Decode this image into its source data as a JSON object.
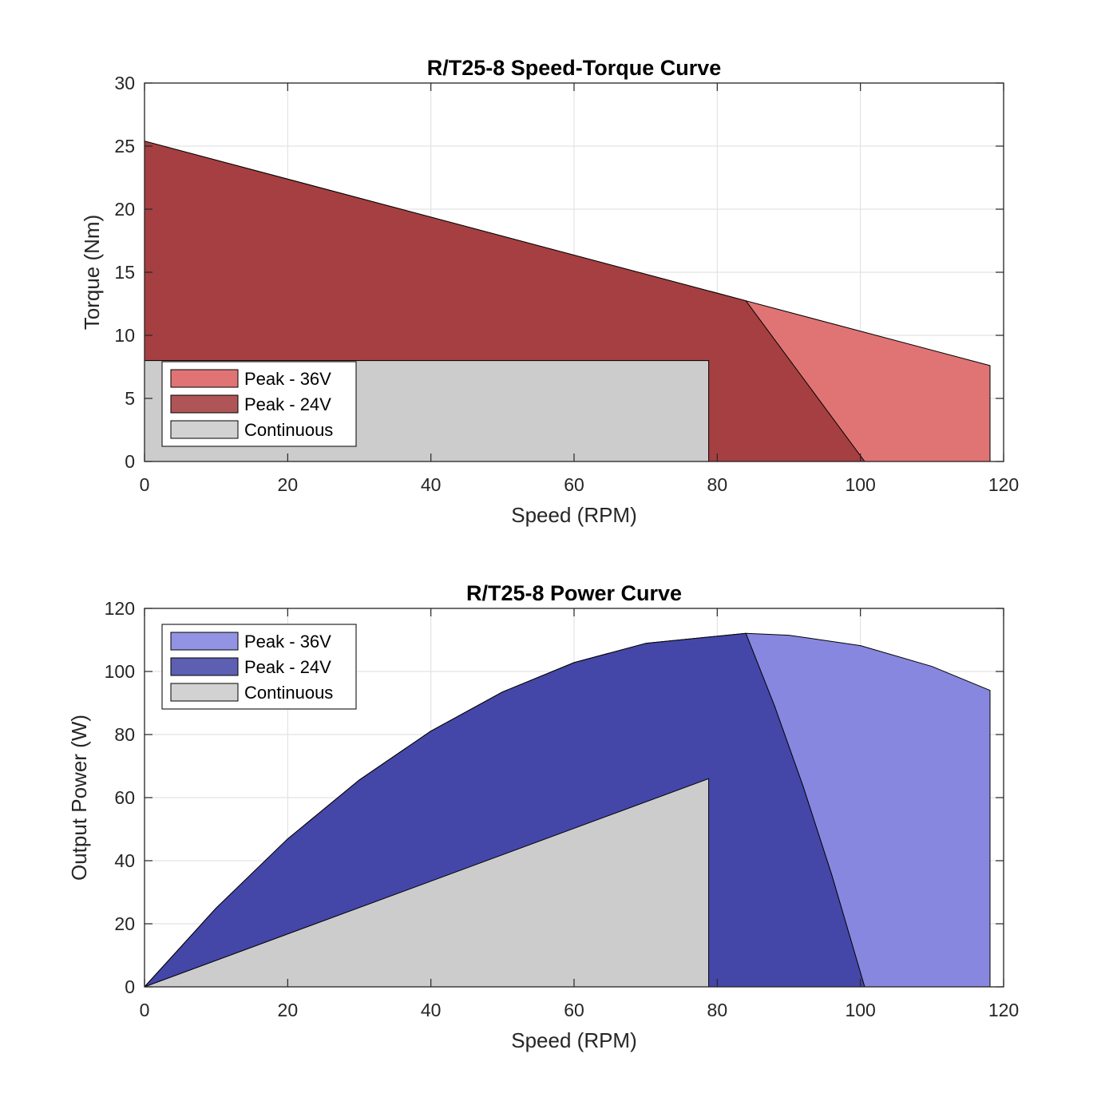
{
  "chart_data": [
    {
      "type": "area",
      "title": "R/T25-8 Speed-Torque Curve",
      "xlabel": "Speed (RPM)",
      "ylabel": "Torque (Nm)",
      "xlim": [
        0,
        120
      ],
      "ylim": [
        0,
        30
      ],
      "xticks": [
        0,
        20,
        40,
        60,
        80,
        100,
        120
      ],
      "yticks": [
        0,
        5,
        10,
        15,
        20,
        25,
        30
      ],
      "grid": true,
      "legend_position": "bottom-left",
      "series": [
        {
          "name": "Peak - 36V",
          "color": "#e07474",
          "legend_color": "#e07474",
          "points": [
            [
              0,
              0
            ],
            [
              0,
              25.4
            ],
            [
              84,
              12.74
            ],
            [
              118.1,
              7.6
            ],
            [
              118.1,
              0
            ]
          ]
        },
        {
          "name": "Peak - 24V",
          "color": "#a53f41",
          "legend_color": "#b05557",
          "points": [
            [
              0,
              0
            ],
            [
              0,
              25.4
            ],
            [
              84,
              12.74
            ],
            [
              100.6,
              0
            ]
          ]
        },
        {
          "name": "Continuous",
          "color": "#cccccc",
          "legend_color": "#d2d2d2",
          "points": [
            [
              0,
              0
            ],
            [
              0,
              8
            ],
            [
              78.8,
              8
            ],
            [
              78.8,
              0
            ]
          ]
        }
      ]
    },
    {
      "type": "area",
      "title": "R/T25-8 Power Curve",
      "xlabel": "Speed (RPM)",
      "ylabel": "Output Power (W)",
      "xlim": [
        0,
        120
      ],
      "ylim": [
        0,
        120
      ],
      "xticks": [
        0,
        20,
        40,
        60,
        80,
        100,
        120
      ],
      "yticks": [
        0,
        20,
        40,
        60,
        80,
        100,
        120
      ],
      "grid": true,
      "legend_position": "top-left",
      "series": [
        {
          "name": "Peak - 36V",
          "color": "#8787e0",
          "legend_color": "#9393e3",
          "points": [
            [
              0,
              0
            ],
            [
              10,
              25.0
            ],
            [
              20,
              46.9
            ],
            [
              30,
              65.6
            ],
            [
              40,
              81.1
            ],
            [
              50,
              93.5
            ],
            [
              60,
              102.8
            ],
            [
              70,
              108.9
            ],
            [
              84,
              112.1
            ],
            [
              90,
              111.5
            ],
            [
              100,
              108.2
            ],
            [
              110,
              101.6
            ],
            [
              118.1,
              94.0
            ],
            [
              118.1,
              0
            ]
          ]
        },
        {
          "name": "Peak - 24V",
          "color": "#4446a8",
          "legend_color": "#5d5fb2",
          "points": [
            [
              0,
              0
            ],
            [
              10,
              25.0
            ],
            [
              20,
              46.9
            ],
            [
              30,
              65.6
            ],
            [
              40,
              81.1
            ],
            [
              50,
              93.5
            ],
            [
              60,
              102.8
            ],
            [
              70,
              108.9
            ],
            [
              84,
              112.1
            ],
            [
              88,
              89.1
            ],
            [
              92,
              63.6
            ],
            [
              96,
              35.5
            ],
            [
              100.6,
              0
            ]
          ]
        },
        {
          "name": "Continuous",
          "color": "#cccccc",
          "legend_color": "#d2d2d2",
          "points": [
            [
              0,
              0
            ],
            [
              78.8,
              66.0
            ],
            [
              78.8,
              0
            ]
          ]
        }
      ]
    }
  ]
}
